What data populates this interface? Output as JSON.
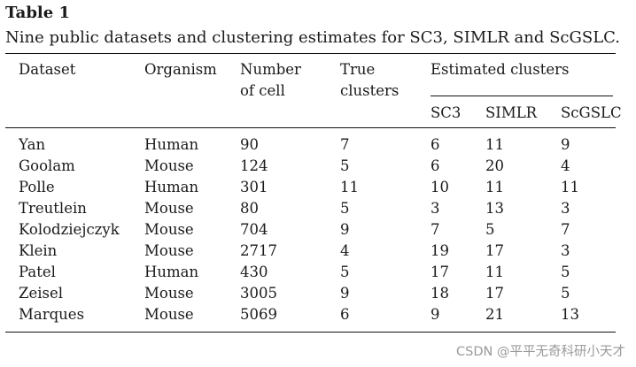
{
  "table": {
    "label": "Table 1",
    "caption": "Nine public datasets and clustering estimates for SC3, SIMLR and ScGSLC.",
    "headers": {
      "dataset": "Dataset",
      "organism": "Organism",
      "number_line1": "Number",
      "number_line2": "of cell",
      "true_line1": "True",
      "true_line2": "clusters",
      "estimated": "Estimated clusters",
      "sc3": "SC3",
      "simlr": "SIMLR",
      "scgslc": "ScGSLC"
    },
    "rows": [
      {
        "dataset": "Yan",
        "organism": "Human",
        "cells": "90",
        "true": "7",
        "sc3": "6",
        "simlr": "11",
        "scgslc": "9"
      },
      {
        "dataset": "Goolam",
        "organism": "Mouse",
        "cells": "124",
        "true": "5",
        "sc3": "6",
        "simlr": "20",
        "scgslc": "4"
      },
      {
        "dataset": "Polle",
        "organism": "Human",
        "cells": "301",
        "true": "11",
        "sc3": "10",
        "simlr": "11",
        "scgslc": "11"
      },
      {
        "dataset": "Treutlein",
        "organism": "Mouse",
        "cells": "80",
        "true": "5",
        "sc3": "3",
        "simlr": "13",
        "scgslc": "3"
      },
      {
        "dataset": "Kolodziejczyk",
        "organism": "Mouse",
        "cells": "704",
        "true": "9",
        "sc3": "7",
        "simlr": "5",
        "scgslc": "7"
      },
      {
        "dataset": "Klein",
        "organism": "Mouse",
        "cells": "2717",
        "true": "4",
        "sc3": "19",
        "simlr": "17",
        "scgslc": "3"
      },
      {
        "dataset": "Patel",
        "organism": "Human",
        "cells": "430",
        "true": "5",
        "sc3": "17",
        "simlr": "11",
        "scgslc": "5"
      },
      {
        "dataset": "Zeisel",
        "organism": "Mouse",
        "cells": "3005",
        "true": "9",
        "sc3": "18",
        "simlr": "17",
        "scgslc": "5"
      },
      {
        "dataset": "Marques",
        "organism": "Mouse",
        "cells": "5069",
        "true": "6",
        "sc3": "9",
        "simlr": "21",
        "scgslc": "13"
      }
    ]
  },
  "watermark": "CSDN @平平无奇科研小天才"
}
